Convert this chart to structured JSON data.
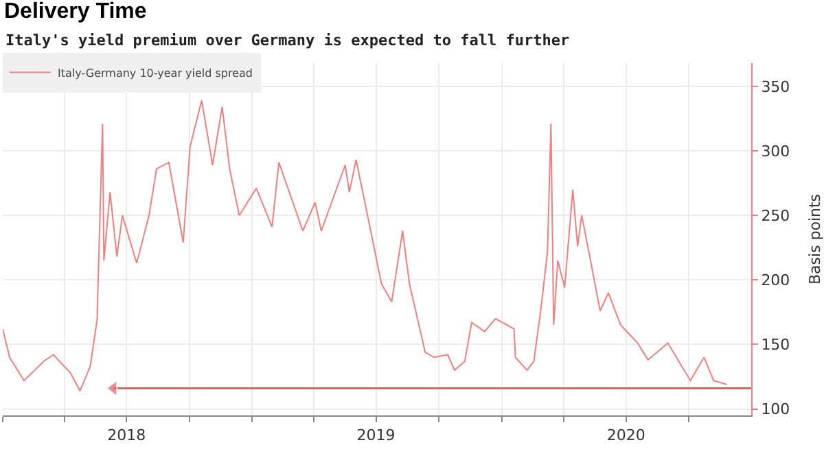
{
  "chart_data": {
    "type": "line",
    "title": "Delivery Time",
    "subtitle": "Italy's yield premium over Germany is expected to fall further",
    "ylabel": "Basis points",
    "x": [
      "2018-01-01",
      "2018-01-11",
      "2018-02-01",
      "2018-03-02",
      "2018-03-16",
      "2018-04-10",
      "2018-04-24",
      "2018-05-09",
      "2018-05-19",
      "2018-05-27",
      "2018-05-29",
      "2018-06-07",
      "2018-06-17",
      "2018-06-25",
      "2018-07-16",
      "2018-08-03",
      "2018-08-14",
      "2018-09-01",
      "2018-09-22",
      "2018-10-02",
      "2018-10-19",
      "2018-11-04",
      "2018-11-18",
      "2018-11-29",
      "2018-12-13",
      "2019-01-07",
      "2019-01-30",
      "2019-02-09",
      "2019-03-16",
      "2019-04-03",
      "2019-04-12",
      "2019-05-17",
      "2019-05-23",
      "2019-06-02",
      "2019-06-21",
      "2019-07-09",
      "2019-07-24",
      "2019-08-09",
      "2019-08-19",
      "2019-09-11",
      "2019-09-24",
      "2019-10-14",
      "2019-10-24",
      "2019-11-08",
      "2019-11-18",
      "2019-12-07",
      "2019-12-23",
      "2020-01-19",
      "2020-01-21",
      "2020-02-07",
      "2020-02-17",
      "2020-02-27",
      "2020-03-08",
      "2020-03-13",
      "2020-03-17",
      "2020-03-23",
      "2020-04-02",
      "2020-04-14",
      "2020-04-21",
      "2020-04-27",
      "2020-05-11",
      "2020-05-24",
      "2020-06-05",
      "2020-06-23",
      "2020-07-18",
      "2020-08-02",
      "2020-08-31",
      "2020-10-03",
      "2020-10-23",
      "2020-11-06",
      "2020-11-25"
    ],
    "series": [
      {
        "name": "Italy-Germany 10-year yield spread",
        "color": "#f08080",
        "values": [
          162,
          140,
          122,
          137,
          142,
          128,
          114,
          133,
          169,
          321,
          215,
          268,
          218,
          250,
          213,
          250,
          286,
          291,
          229,
          303,
          339,
          289,
          334,
          286,
          250,
          271,
          241,
          291,
          238,
          260,
          238,
          289,
          268,
          293,
          244,
          197,
          183,
          238,
          197,
          144,
          140,
          142,
          130,
          137,
          167,
          160,
          170,
          162,
          140,
          130,
          137,
          176,
          222,
          321,
          165,
          215,
          194,
          270,
          226,
          250,
          212,
          176,
          190,
          165,
          151,
          138,
          151,
          122,
          140,
          122,
          119
        ]
      },
      {
        "type": "line",
        "color": "#e06060",
        "x": [
          "2018-06-12",
          "2020-12-31"
        ],
        "values": [
          116,
          116
        ],
        "marker": "triangle"
      }
    ],
    "xlim": [
      "2018-01-01",
      "2020-12-31"
    ],
    "xticks": [
      {
        "value": "2018-01-01",
        "label": null
      },
      {
        "value": "2018-04-01",
        "label": null
      },
      {
        "value": "2018-07-01",
        "label": "2018"
      },
      {
        "value": "2018-10-01",
        "label": null
      },
      {
        "value": "2019-01-01",
        "label": null
      },
      {
        "value": "2019-04-01",
        "label": null
      },
      {
        "value": "2019-07-01",
        "label": "2019"
      },
      {
        "value": "2019-10-01",
        "label": null
      },
      {
        "value": "2020-01-01",
        "label": null
      },
      {
        "value": "2020-04-01",
        "label": null
      },
      {
        "value": "2020-07-01",
        "label": "2020"
      },
      {
        "value": "2020-10-01",
        "label": null
      }
    ],
    "ylim": [
      95,
      368
    ],
    "yticks": [
      100,
      150,
      200,
      250,
      300,
      350
    ],
    "grid": true,
    "legend": "top left",
    "line_style": "solid",
    "marker": "none"
  }
}
